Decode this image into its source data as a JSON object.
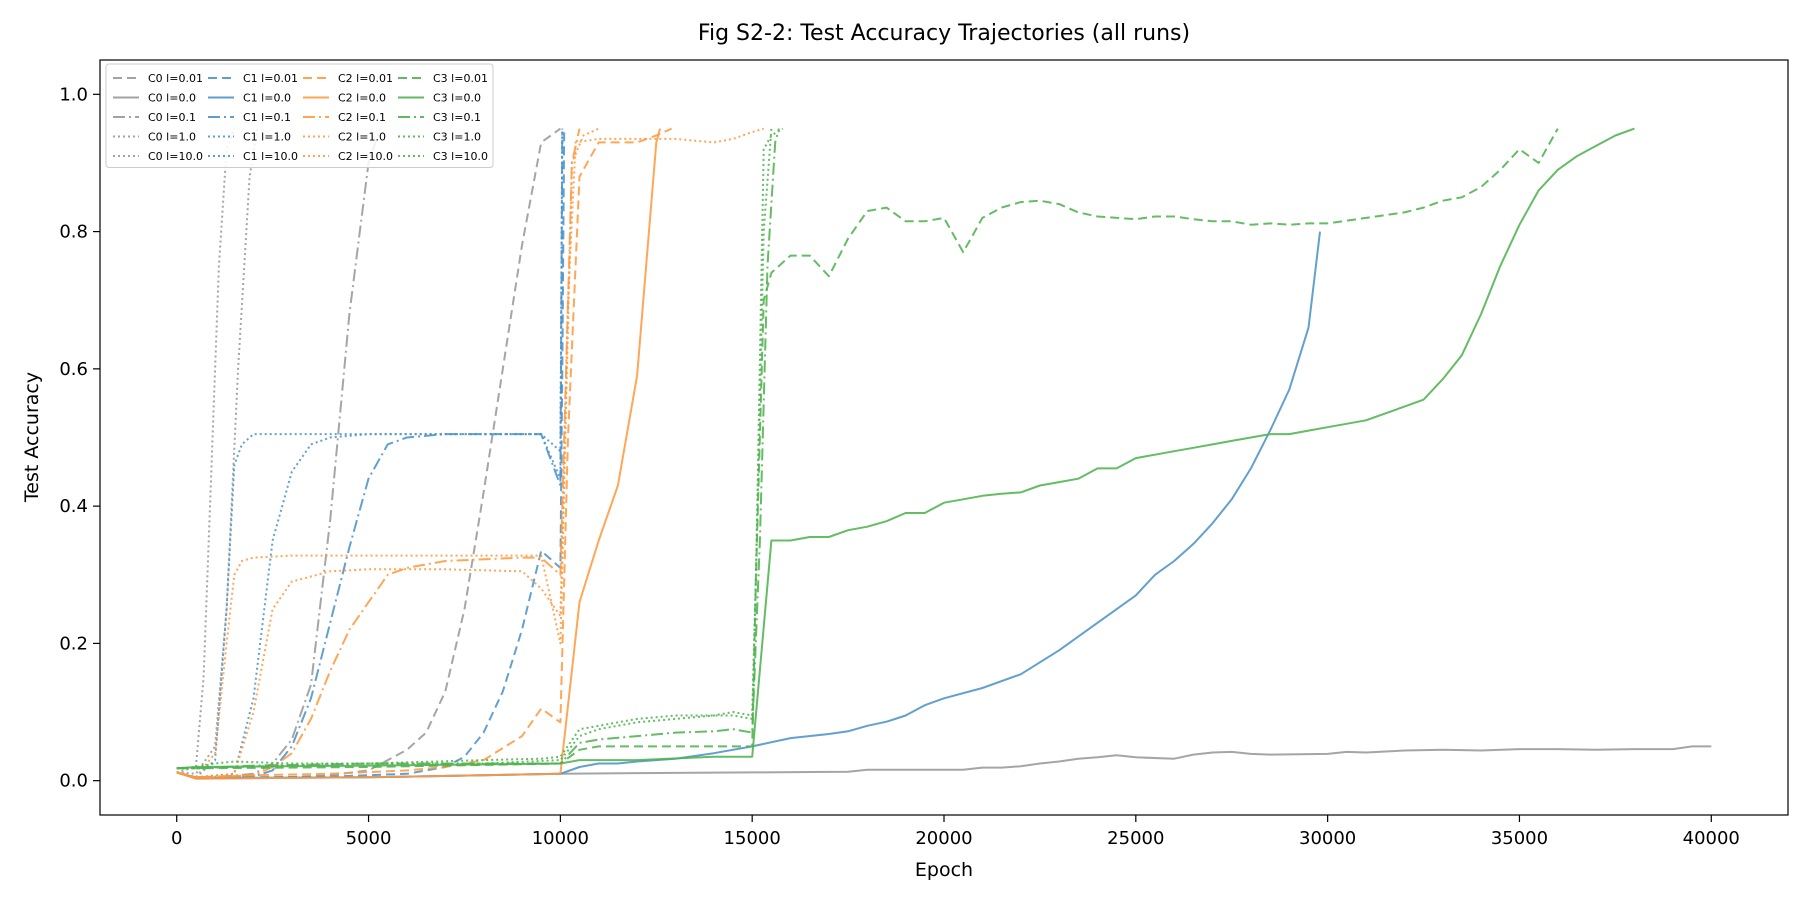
{
  "chart_data": {
    "type": "line",
    "title": "Fig S2-2: Test Accuracy Trajectories (all runs)",
    "xlabel": "Epoch",
    "ylabel": "Test Accuracy",
    "xlim": [
      -2000,
      42000
    ],
    "ylim": [
      -0.05,
      1.05
    ],
    "xticks": [
      0,
      5000,
      10000,
      15000,
      20000,
      25000,
      30000,
      35000,
      40000
    ],
    "yticks": [
      0.0,
      0.2,
      0.4,
      0.6,
      0.8,
      1.0
    ],
    "xtick_labels": [
      "0",
      "5000",
      "10000",
      "15000",
      "20000",
      "25000",
      "30000",
      "35000",
      "40000"
    ],
    "ytick_labels": [
      "0.0",
      "0.2",
      "0.4",
      "0.6",
      "0.8",
      "1.0"
    ],
    "grid": false,
    "legend_position": "top-left",
    "legend_columns": 4,
    "colors": {
      "C0": "#999999",
      "C1": "#4c93c9",
      "C2": "#ff9a40",
      "C3": "#4fb34f"
    },
    "dash_styles": {
      "solid": "",
      "dashed": "9,5",
      "dashdot": "12,4,2,4",
      "dotted": "2,3"
    },
    "series": [
      {
        "name": "C0 l=0.01",
        "color": "#999999",
        "dash": "dashed",
        "x": [
          0,
          500,
          1000,
          2000,
          3000,
          4000,
          5000,
          6000,
          6500,
          7000,
          7500,
          8000,
          8500,
          9000,
          9500,
          10000
        ],
        "y": [
          0.012,
          0.004,
          0.003,
          0.004,
          0.005,
          0.008,
          0.015,
          0.045,
          0.07,
          0.13,
          0.25,
          0.42,
          0.6,
          0.78,
          0.93,
          0.95
        ]
      },
      {
        "name": "C0 l=0.0",
        "color": "#999999",
        "dash": "solid",
        "x": [
          0,
          500,
          5000,
          10000,
          12000,
          15000,
          17500,
          18000,
          20000,
          20500,
          21000,
          21500,
          22000,
          22500,
          23000,
          23500,
          24000,
          24500,
          25000,
          26000,
          26500,
          27000,
          27500,
          28000,
          28500,
          30000,
          30500,
          31000,
          32000,
          33000,
          34000,
          35000,
          36000,
          37000,
          38000,
          39000,
          39500,
          40000
        ],
        "y": [
          0.012,
          0.003,
          0.005,
          0.01,
          0.011,
          0.012,
          0.013,
          0.016,
          0.016,
          0.016,
          0.019,
          0.019,
          0.021,
          0.025,
          0.028,
          0.032,
          0.034,
          0.037,
          0.034,
          0.032,
          0.038,
          0.041,
          0.042,
          0.039,
          0.038,
          0.039,
          0.042,
          0.041,
          0.044,
          0.045,
          0.044,
          0.046,
          0.046,
          0.045,
          0.046,
          0.046,
          0.05,
          0.05
        ]
      },
      {
        "name": "C0 l=0.1",
        "color": "#999999",
        "dash": "dashdot",
        "x": [
          0,
          500,
          1000,
          2000,
          2500,
          3000,
          3500,
          4000,
          4500,
          5000,
          5300
        ],
        "y": [
          0.012,
          0.004,
          0.005,
          0.01,
          0.025,
          0.06,
          0.14,
          0.38,
          0.68,
          0.9,
          0.95
        ]
      },
      {
        "name": "C0 l=1.0",
        "color": "#999999",
        "dash": "dotted",
        "x": [
          0,
          500,
          700,
          900,
          1100,
          1300,
          1500
        ],
        "y": [
          0.012,
          0.02,
          0.15,
          0.45,
          0.75,
          0.92,
          0.95
        ]
      },
      {
        "name": "C0 l=10.0",
        "color": "#999999",
        "dash": "dotted",
        "x": [
          0,
          500,
          1000,
          1300,
          1600,
          1900,
          2100
        ],
        "y": [
          0.012,
          0.01,
          0.05,
          0.25,
          0.6,
          0.88,
          0.95
        ]
      },
      {
        "name": "C1 l=0.01",
        "color": "#4c93c9",
        "dash": "dashed",
        "x": [
          0,
          500,
          2000,
          4000,
          6000,
          7000,
          7500,
          8000,
          8500,
          9000,
          9500,
          10000,
          10050,
          10100
        ],
        "y": [
          0.012,
          0.005,
          0.005,
          0.006,
          0.01,
          0.02,
          0.035,
          0.07,
          0.13,
          0.22,
          0.335,
          0.31,
          0.6,
          0.95
        ]
      },
      {
        "name": "C1 l=0.0",
        "color": "#4c93c9",
        "dash": "solid",
        "x": [
          0,
          500,
          5000,
          10000,
          10500,
          11000,
          11500,
          12000,
          13000,
          14000,
          15000,
          16000,
          17000,
          17500,
          18000,
          18500,
          19000,
          19500,
          20000,
          21000,
          22000,
          23000,
          24000,
          25000,
          25500,
          26000,
          26500,
          27000,
          27500,
          28000,
          28500,
          29000,
          29500,
          29800
        ],
        "y": [
          0.012,
          0.004,
          0.005,
          0.01,
          0.02,
          0.025,
          0.025,
          0.028,
          0.032,
          0.04,
          0.05,
          0.062,
          0.068,
          0.072,
          0.08,
          0.086,
          0.095,
          0.11,
          0.12,
          0.135,
          0.155,
          0.19,
          0.23,
          0.27,
          0.3,
          0.32,
          0.345,
          0.375,
          0.41,
          0.455,
          0.51,
          0.57,
          0.66,
          0.8
        ]
      },
      {
        "name": "C1 l=0.1",
        "color": "#4c93c9",
        "dash": "dashdot",
        "x": [
          0,
          500,
          2000,
          2500,
          3000,
          3500,
          4000,
          4500,
          5000,
          5500,
          6000,
          7000,
          8000,
          9000,
          9500,
          10000,
          10050
        ],
        "y": [
          0.012,
          0.005,
          0.006,
          0.015,
          0.05,
          0.12,
          0.23,
          0.34,
          0.44,
          0.49,
          0.5,
          0.505,
          0.505,
          0.505,
          0.505,
          0.43,
          0.95
        ]
      },
      {
        "name": "C1 l=1.0",
        "color": "#4c93c9",
        "dash": "dotted",
        "x": [
          0,
          500,
          1500,
          2000,
          2500,
          3000,
          3500,
          4000,
          5000,
          6000,
          8000,
          9500,
          10000,
          10050
        ],
        "y": [
          0.012,
          0.005,
          0.01,
          0.12,
          0.35,
          0.45,
          0.49,
          0.5,
          0.505,
          0.505,
          0.505,
          0.505,
          0.48,
          0.95
        ]
      },
      {
        "name": "C1 l=10.0",
        "color": "#4c93c9",
        "dash": "dotted",
        "x": [
          0,
          500,
          1000,
          1300,
          1500,
          1700,
          2000,
          3000,
          5000,
          8000,
          9500,
          10000,
          10050
        ],
        "y": [
          0.012,
          0.005,
          0.03,
          0.25,
          0.46,
          0.49,
          0.505,
          0.505,
          0.505,
          0.505,
          0.505,
          0.44,
          0.95
        ]
      },
      {
        "name": "C2 l=0.01",
        "color": "#ff9a40",
        "dash": "dashed",
        "x": [
          0,
          500,
          2000,
          4000,
          6000,
          7000,
          8000,
          9000,
          9500,
          10000,
          10200,
          10500,
          11000,
          12000,
          12500,
          12900
        ],
        "y": [
          0.012,
          0.005,
          0.008,
          0.01,
          0.015,
          0.02,
          0.03,
          0.065,
          0.105,
          0.085,
          0.5,
          0.88,
          0.93,
          0.93,
          0.94,
          0.95
        ]
      },
      {
        "name": "C2 l=0.0",
        "color": "#ff9a40",
        "dash": "solid",
        "x": [
          0,
          500,
          5000,
          10000,
          10500,
          11000,
          11500,
          12000,
          12500,
          12600
        ],
        "y": [
          0.012,
          0.003,
          0.005,
          0.01,
          0.26,
          0.35,
          0.43,
          0.59,
          0.93,
          0.95
        ]
      },
      {
        "name": "C2 l=0.1",
        "color": "#ff9a40",
        "dash": "dashdot",
        "x": [
          0,
          500,
          2000,
          2500,
          3000,
          3500,
          4000,
          4500,
          5000,
          5500,
          6000,
          7000,
          9000,
          9500,
          10000,
          10300,
          10500
        ],
        "y": [
          0.012,
          0.005,
          0.008,
          0.02,
          0.04,
          0.09,
          0.16,
          0.22,
          0.26,
          0.3,
          0.31,
          0.32,
          0.325,
          0.325,
          0.3,
          0.9,
          0.95
        ]
      },
      {
        "name": "C2 l=1.0",
        "color": "#ff9a40",
        "dash": "dotted",
        "x": [
          0,
          500,
          1500,
          2000,
          2500,
          3000,
          4000,
          5000,
          7000,
          9000,
          9500,
          10000,
          10200,
          10400,
          11000,
          13000,
          14000,
          14500,
          15000,
          15300
        ],
        "y": [
          0.012,
          0.005,
          0.01,
          0.1,
          0.25,
          0.29,
          0.305,
          0.308,
          0.308,
          0.305,
          0.28,
          0.24,
          0.7,
          0.93,
          0.935,
          0.935,
          0.93,
          0.935,
          0.945,
          0.95
        ]
      },
      {
        "name": "C2 l=10.0",
        "color": "#ff9a40",
        "dash": "dotted",
        "x": [
          0,
          500,
          1000,
          1300,
          1500,
          1700,
          2000,
          3000,
          5000,
          8000,
          9500,
          10000,
          10300,
          10600,
          11000
        ],
        "y": [
          0.012,
          0.005,
          0.04,
          0.2,
          0.3,
          0.32,
          0.325,
          0.328,
          0.328,
          0.328,
          0.328,
          0.2,
          0.9,
          0.94,
          0.95
        ]
      },
      {
        "name": "C3 l=0.01",
        "color": "#4fb34f",
        "dash": "dashed",
        "x": [
          0,
          500,
          5000,
          10000,
          10500,
          11000,
          12000,
          13000,
          14000,
          15000,
          15100,
          15300,
          15500,
          16000,
          16500,
          17000,
          17500,
          18000,
          18500,
          19000,
          19500,
          20000,
          20500,
          21000,
          21500,
          22000,
          22500,
          23000,
          23500,
          24000,
          25000,
          25500,
          26000,
          26500,
          27000,
          27500,
          28000,
          28500,
          29000,
          29500,
          30000,
          31000,
          32000,
          32500,
          33000,
          33500,
          34000,
          34500,
          35000,
          35500,
          36000
        ],
        "y": [
          0.018,
          0.018,
          0.02,
          0.025,
          0.045,
          0.05,
          0.05,
          0.05,
          0.05,
          0.05,
          0.3,
          0.7,
          0.74,
          0.765,
          0.765,
          0.735,
          0.79,
          0.83,
          0.835,
          0.815,
          0.815,
          0.82,
          0.77,
          0.82,
          0.835,
          0.843,
          0.845,
          0.84,
          0.828,
          0.822,
          0.818,
          0.822,
          0.822,
          0.818,
          0.815,
          0.815,
          0.81,
          0.812,
          0.81,
          0.812,
          0.812,
          0.82,
          0.828,
          0.835,
          0.845,
          0.85,
          0.865,
          0.89,
          0.92,
          0.9,
          0.95
        ]
      },
      {
        "name": "C3 l=0.0",
        "color": "#4fb34f",
        "dash": "solid",
        "x": [
          0,
          500,
          5000,
          10000,
          10500,
          12000,
          14000,
          15000,
          15500,
          16000,
          16500,
          17000,
          17500,
          18000,
          18500,
          19000,
          19500,
          20000,
          20500,
          21000,
          21500,
          22000,
          22500,
          23000,
          23500,
          24000,
          24500,
          25000,
          25500,
          26000,
          26500,
          27000,
          27500,
          28000,
          28500,
          29000,
          29500,
          30000,
          31000,
          32000,
          32500,
          33000,
          33500,
          34000,
          34500,
          35000,
          35500,
          36000,
          36500,
          37000,
          37500,
          38000
        ],
        "y": [
          0.018,
          0.02,
          0.022,
          0.025,
          0.03,
          0.03,
          0.035,
          0.035,
          0.35,
          0.35,
          0.355,
          0.355,
          0.365,
          0.37,
          0.378,
          0.39,
          0.39,
          0.405,
          0.41,
          0.415,
          0.418,
          0.42,
          0.43,
          0.435,
          0.44,
          0.455,
          0.455,
          0.47,
          0.475,
          0.48,
          0.485,
          0.49,
          0.495,
          0.5,
          0.505,
          0.505,
          0.51,
          0.515,
          0.525,
          0.545,
          0.555,
          0.585,
          0.62,
          0.68,
          0.75,
          0.81,
          0.86,
          0.89,
          0.91,
          0.925,
          0.94,
          0.95
        ]
      },
      {
        "name": "C3 l=0.1",
        "color": "#4fb34f",
        "dash": "dashdot",
        "x": [
          0,
          500,
          2000,
          5000,
          8000,
          10000,
          10500,
          11000,
          12000,
          13000,
          14000,
          14500,
          15000,
          15200,
          15400,
          15600,
          15700
        ],
        "y": [
          0.018,
          0.018,
          0.022,
          0.025,
          0.025,
          0.025,
          0.055,
          0.06,
          0.065,
          0.07,
          0.072,
          0.075,
          0.07,
          0.35,
          0.75,
          0.93,
          0.95
        ]
      },
      {
        "name": "C3 l=1.0",
        "color": "#4fb34f",
        "dash": "dotted",
        "x": [
          0,
          500,
          1500,
          3000,
          5000,
          8000,
          10000,
          10500,
          11000,
          12000,
          13000,
          14000,
          14500,
          15000,
          15100,
          15300,
          15500
        ],
        "y": [
          0.018,
          0.018,
          0.02,
          0.022,
          0.025,
          0.025,
          0.03,
          0.065,
          0.075,
          0.085,
          0.09,
          0.095,
          0.1,
          0.095,
          0.3,
          0.8,
          0.95
        ]
      },
      {
        "name": "C3 l=10.0",
        "color": "#4fb34f",
        "dash": "dotted",
        "x": [
          0,
          500,
          1000,
          1500,
          3000,
          5000,
          8000,
          9500,
          10000,
          10500,
          11000,
          12000,
          13000,
          14000,
          14500,
          15000,
          15100,
          15300,
          15500,
          15800
        ],
        "y": [
          0.018,
          0.02,
          0.025,
          0.028,
          0.025,
          0.025,
          0.03,
          0.032,
          0.035,
          0.075,
          0.08,
          0.09,
          0.095,
          0.095,
          0.095,
          0.09,
          0.3,
          0.92,
          0.94,
          0.95
        ]
      }
    ]
  }
}
